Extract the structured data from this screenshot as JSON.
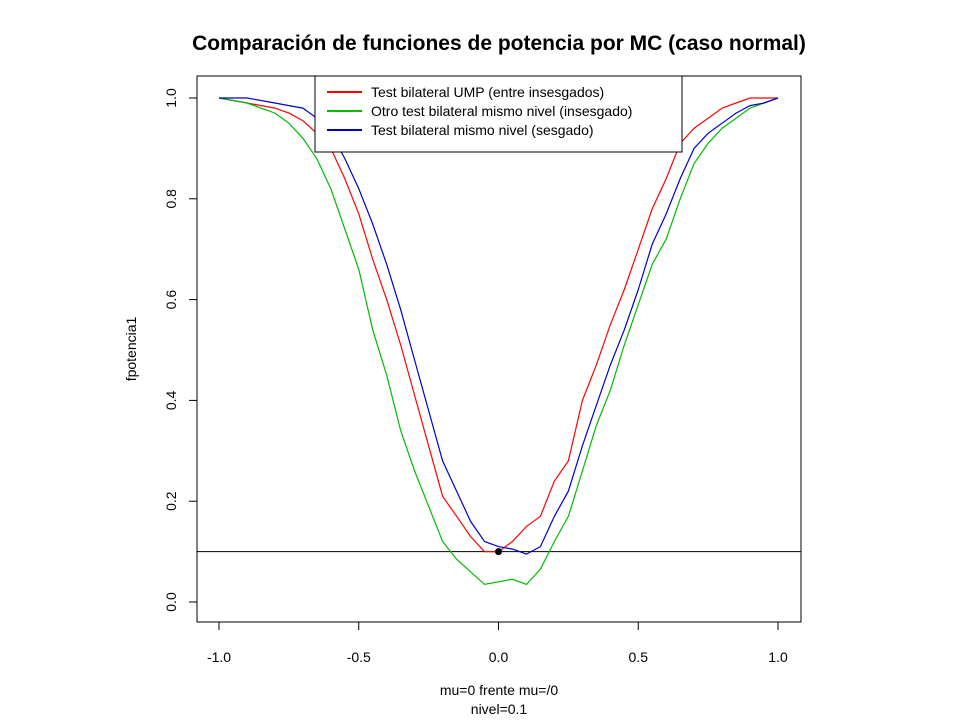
{
  "chart_data": {
    "type": "line",
    "title": "Comparación de funciones de potencia por MC (caso normal)",
    "xlabel": "mu=0 frente mu=/0",
    "xlabel2": "nivel=0.1",
    "ylabel": "fpotencia1",
    "xlim": [
      -1.0,
      1.0
    ],
    "ylim": [
      0.0,
      1.0
    ],
    "xticks": [
      -1.0,
      -0.5,
      0.0,
      0.5,
      1.0
    ],
    "xtick_labels": [
      "-1.0",
      "-0.5",
      "0.0",
      "0.5",
      "1.0"
    ],
    "yticks": [
      0.0,
      0.2,
      0.4,
      0.6,
      0.8,
      1.0
    ],
    "ytick_labels": [
      "0.0",
      "0.2",
      "0.4",
      "0.6",
      "0.8",
      "1.0"
    ],
    "grid": false,
    "legend_position": "top",
    "hline": 0.1,
    "point": {
      "x": 0.0,
      "y": 0.1
    },
    "series": [
      {
        "name": "Test bilateral UMP (entre insesgados)",
        "color": "#ff0000",
        "x": [
          -1.0,
          -0.9,
          -0.8,
          -0.75,
          -0.7,
          -0.65,
          -0.6,
          -0.55,
          -0.5,
          -0.45,
          -0.4,
          -0.35,
          -0.3,
          -0.25,
          -0.2,
          -0.15,
          -0.1,
          -0.05,
          0.0,
          0.05,
          0.1,
          0.15,
          0.2,
          0.25,
          0.3,
          0.35,
          0.4,
          0.45,
          0.5,
          0.55,
          0.6,
          0.65,
          0.7,
          0.75,
          0.8,
          0.85,
          0.9,
          0.95,
          1.0
        ],
        "y": [
          1.0,
          0.99,
          0.98,
          0.97,
          0.955,
          0.93,
          0.9,
          0.84,
          0.77,
          0.68,
          0.6,
          0.51,
          0.41,
          0.31,
          0.21,
          0.17,
          0.13,
          0.1,
          0.1,
          0.12,
          0.15,
          0.17,
          0.24,
          0.28,
          0.4,
          0.47,
          0.55,
          0.62,
          0.7,
          0.78,
          0.84,
          0.91,
          0.94,
          0.96,
          0.98,
          0.99,
          1.0,
          1.0,
          1.0
        ]
      },
      {
        "name": "Otro test bilateral mismo nivel (insesgado)",
        "color": "#00bb00",
        "x": [
          -1.0,
          -0.9,
          -0.8,
          -0.75,
          -0.7,
          -0.65,
          -0.6,
          -0.55,
          -0.5,
          -0.45,
          -0.4,
          -0.35,
          -0.3,
          -0.25,
          -0.2,
          -0.15,
          -0.1,
          -0.05,
          0.0,
          0.05,
          0.1,
          0.15,
          0.2,
          0.25,
          0.3,
          0.35,
          0.4,
          0.45,
          0.5,
          0.55,
          0.6,
          0.65,
          0.7,
          0.75,
          0.8,
          0.85,
          0.9,
          0.95,
          1.0
        ],
        "y": [
          1.0,
          0.99,
          0.97,
          0.95,
          0.92,
          0.88,
          0.82,
          0.74,
          0.66,
          0.54,
          0.45,
          0.34,
          0.26,
          0.19,
          0.12,
          0.085,
          0.06,
          0.035,
          0.04,
          0.045,
          0.035,
          0.065,
          0.12,
          0.17,
          0.26,
          0.35,
          0.42,
          0.51,
          0.59,
          0.67,
          0.72,
          0.8,
          0.87,
          0.91,
          0.94,
          0.96,
          0.98,
          0.99,
          1.0
        ]
      },
      {
        "name": "Test bilateral mismo nivel (sesgado)",
        "color": "#0000cc",
        "x": [
          -1.0,
          -0.9,
          -0.8,
          -0.75,
          -0.7,
          -0.65,
          -0.6,
          -0.55,
          -0.5,
          -0.45,
          -0.4,
          -0.35,
          -0.3,
          -0.25,
          -0.2,
          -0.15,
          -0.1,
          -0.05,
          0.0,
          0.05,
          0.1,
          0.15,
          0.2,
          0.25,
          0.3,
          0.35,
          0.4,
          0.45,
          0.5,
          0.55,
          0.6,
          0.65,
          0.7,
          0.75,
          0.8,
          0.85,
          0.9,
          0.95,
          1.0
        ],
        "y": [
          1.0,
          1.0,
          0.99,
          0.985,
          0.98,
          0.96,
          0.93,
          0.88,
          0.82,
          0.75,
          0.67,
          0.58,
          0.48,
          0.38,
          0.28,
          0.22,
          0.16,
          0.12,
          0.11,
          0.105,
          0.095,
          0.11,
          0.17,
          0.22,
          0.31,
          0.39,
          0.47,
          0.54,
          0.62,
          0.71,
          0.77,
          0.84,
          0.9,
          0.93,
          0.95,
          0.97,
          0.985,
          0.99,
          1.0
        ]
      }
    ]
  }
}
